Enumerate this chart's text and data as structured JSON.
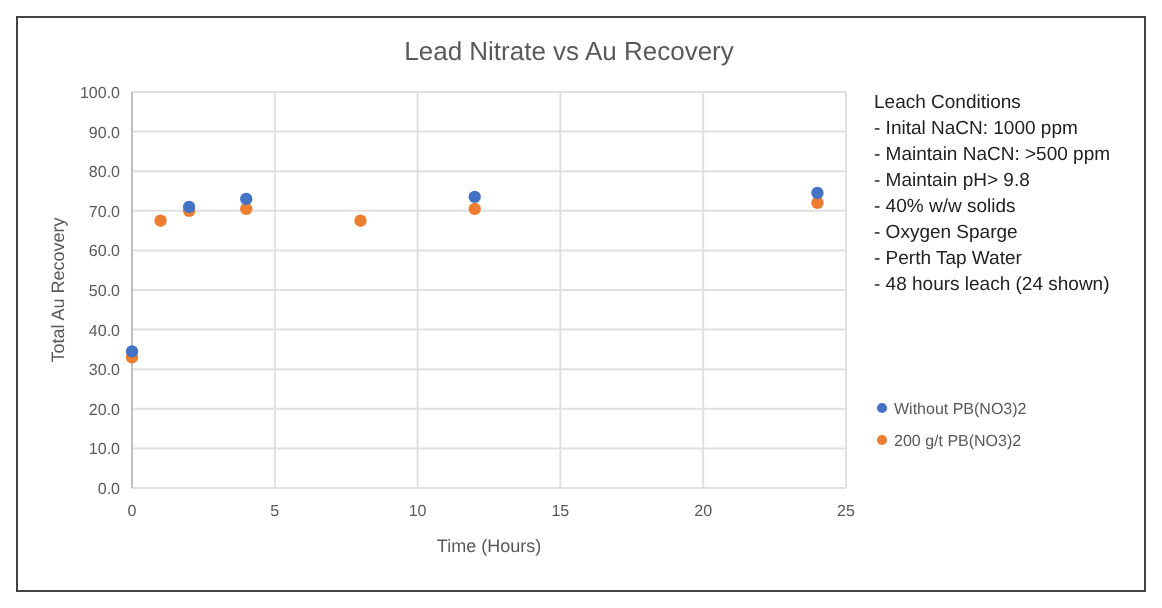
{
  "chart_data": {
    "type": "scatter",
    "title": "Lead Nitrate vs Au Recovery",
    "xlabel": "Time (Hours)",
    "ylabel": "Total Au Recovery",
    "series": [
      {
        "name": "Without PB(NO3)2",
        "color": "#4472c4",
        "x": [
          0,
          2,
          4,
          12,
          24
        ],
        "values": [
          34.5,
          71,
          73,
          73.5,
          74.5
        ]
      },
      {
        "name": "200 g/t PB(NO3)2",
        "color": "#ed7d31",
        "x": [
          0,
          1,
          2,
          4,
          8,
          12,
          24
        ],
        "values": [
          33,
          67.5,
          70,
          70.5,
          67.5,
          70.5,
          72
        ]
      }
    ],
    "xlim": [
      0,
      25
    ],
    "xticks": [
      0,
      5,
      10,
      15,
      20,
      25
    ],
    "ylim": [
      0,
      100
    ],
    "yticks": [
      {
        "value": 0,
        "label": "0.0"
      },
      {
        "value": 10,
        "label": "10.0"
      },
      {
        "value": 20,
        "label": "20.0"
      },
      {
        "value": 30,
        "label": "30.0"
      },
      {
        "value": 40,
        "label": "40.0"
      },
      {
        "value": 50,
        "label": "50.0"
      },
      {
        "value": 60,
        "label": "60.0"
      },
      {
        "value": 70,
        "label": "70.0"
      },
      {
        "value": 80,
        "label": "80.0"
      },
      {
        "value": 90,
        "label": "90.0"
      },
      {
        "value": 100,
        "label": "100.0"
      }
    ],
    "grid": true,
    "legend": "bottom right",
    "marker": "circle",
    "annotations": [
      "Leach Conditions",
      "- Inital NaCN: 1000 ppm",
      "- Maintain NaCN: >500 ppm",
      "- Maintain pH> 9.8",
      "- 40% w/w solids",
      "- Oxygen Sparge",
      "- Perth Tap Water",
      "- 48 hours leach (24 shown)"
    ]
  }
}
